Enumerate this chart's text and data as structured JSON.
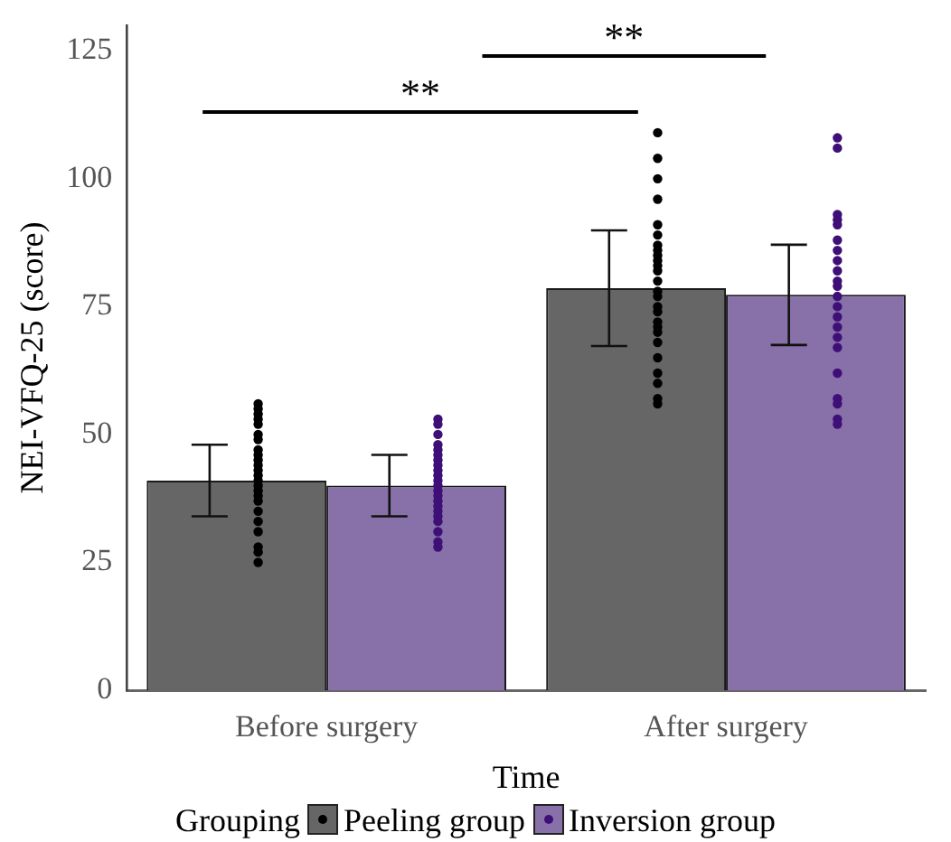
{
  "chart_data": {
    "type": "bar",
    "xlabel": "Time",
    "ylabel": "NEI-VFQ-25 (score)",
    "legend_title": "Grouping",
    "categories": [
      "Before surgery",
      "After surgery"
    ],
    "series": [
      {
        "name": "Peeling group",
        "color": "#666666",
        "values": [
          41,
          78.6
        ],
        "errors": [
          7,
          11.3
        ]
      },
      {
        "name": "Inversion group",
        "color": "#8870a8",
        "values": [
          40,
          77.3
        ],
        "errors": [
          6,
          9.8
        ]
      },
      {
        "type": "scatter",
        "color": "#000000",
        "x": [
          "Before surgery",
          "Before surgery",
          "Before surgery",
          "Before surgery",
          "Before surgery",
          "Before surgery",
          "Before surgery",
          "Before surgery",
          "Before surgery",
          "Before surgery",
          "Before surgery",
          "Before surgery",
          "Before surgery",
          "Before surgery",
          "Before surgery",
          "Before surgery",
          "Before surgery",
          "Before surgery",
          "Before surgery",
          "Before surgery",
          "Before surgery",
          "Before surgery",
          "Before surgery",
          "Before surgery",
          "After surgery",
          "After surgery",
          "After surgery",
          "After surgery",
          "After surgery",
          "After surgery",
          "After surgery",
          "After surgery",
          "After surgery",
          "After surgery",
          "After surgery",
          "After surgery",
          "After surgery",
          "After surgery",
          "After surgery",
          "After surgery",
          "After surgery",
          "After surgery",
          "After surgery",
          "After surgery",
          "After surgery",
          "After surgery",
          "After surgery",
          "After surgery",
          "After surgery",
          "After surgery"
        ],
        "values": [
          56,
          55,
          54,
          53,
          52,
          50,
          49,
          47,
          46,
          45,
          44,
          43,
          42,
          41,
          40,
          39,
          38,
          37,
          35,
          33,
          31,
          28,
          27,
          25,
          109,
          104,
          100,
          96,
          91,
          89,
          87,
          86,
          85,
          84,
          83,
          82,
          80,
          78,
          77,
          75,
          74,
          72,
          71,
          70,
          68,
          65,
          62,
          60,
          57,
          56
        ]
      },
      {
        "type": "scatter",
        "color": "#3f0f78",
        "x": [
          "Before surgery",
          "Before surgery",
          "Before surgery",
          "Before surgery",
          "Before surgery",
          "Before surgery",
          "Before surgery",
          "Before surgery",
          "Before surgery",
          "Before surgery",
          "Before surgery",
          "Before surgery",
          "Before surgery",
          "Before surgery",
          "Before surgery",
          "Before surgery",
          "Before surgery",
          "Before surgery",
          "Before surgery",
          "Before surgery",
          "Before surgery",
          "Before surgery",
          "After surgery",
          "After surgery",
          "After surgery",
          "After surgery",
          "After surgery",
          "After surgery",
          "After surgery",
          "After surgery",
          "After surgery",
          "After surgery",
          "After surgery",
          "After surgery",
          "After surgery",
          "After surgery",
          "After surgery",
          "After surgery",
          "After surgery",
          "After surgery",
          "After surgery",
          "After surgery",
          "After surgery",
          "After surgery"
        ],
        "values": [
          53,
          52,
          50,
          48,
          47,
          46,
          45,
          44,
          43,
          42,
          41,
          40,
          39,
          38,
          37,
          36,
          35,
          34,
          33,
          31,
          29,
          28,
          108,
          106,
          93,
          92,
          91,
          88,
          86,
          84,
          82,
          80,
          79,
          77,
          75,
          73,
          71,
          69,
          67,
          62,
          57,
          56,
          53,
          52
        ]
      }
    ],
    "ylim": [
      0,
      130
    ],
    "yticks": [
      0,
      25,
      50,
      75,
      100,
      125
    ],
    "grid": false,
    "legend": "bottom",
    "marker": "circle",
    "annotations": [
      "**",
      "**"
    ]
  }
}
